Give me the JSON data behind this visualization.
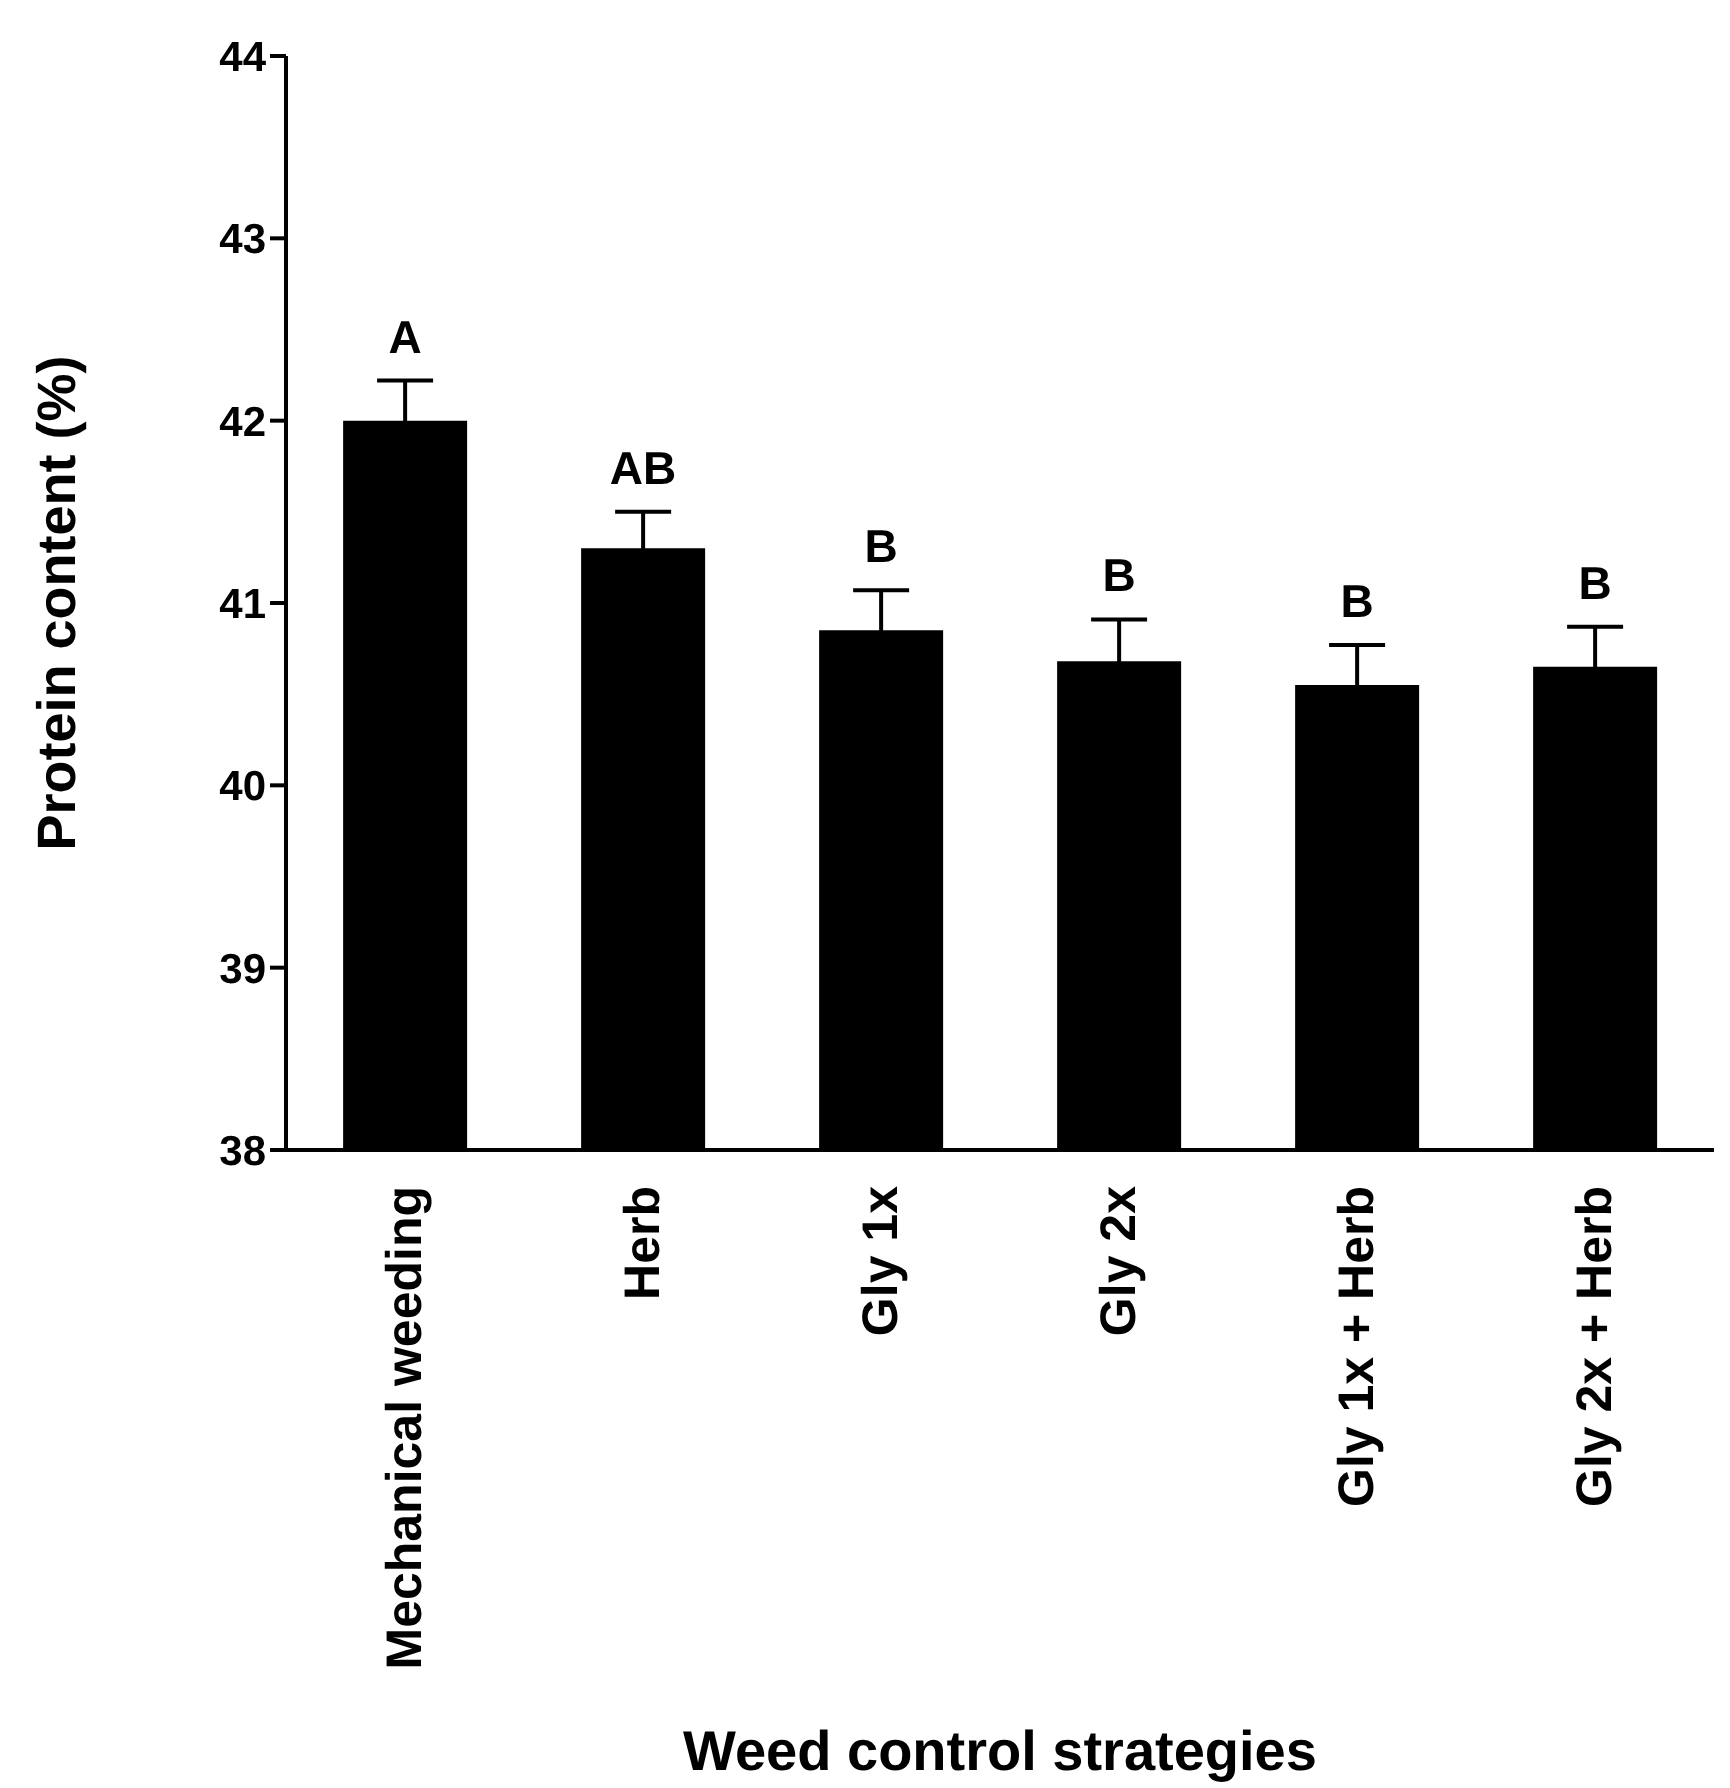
{
  "chart_data": {
    "type": "bar",
    "xlabel": "Weed control strategies",
    "ylabel": "Protein content (%)",
    "categories": [
      "Mechanical weeding",
      "Herb",
      "Gly 1x",
      "Gly 2x",
      "Gly 1x + Herb",
      "Gly 2x + Herb"
    ],
    "values": [
      42.0,
      41.3,
      40.85,
      40.68,
      40.55,
      40.65
    ],
    "errors": [
      0.22,
      0.2,
      0.22,
      0.23,
      0.22,
      0.22
    ],
    "color": "#000000",
    "ylim": [
      38,
      44
    ],
    "yticks": [
      38,
      39,
      40,
      41,
      42,
      43,
      44
    ],
    "grid": false,
    "legend": false,
    "annotations": [
      "A",
      "AB",
      "B",
      "B",
      "B",
      "B"
    ]
  }
}
